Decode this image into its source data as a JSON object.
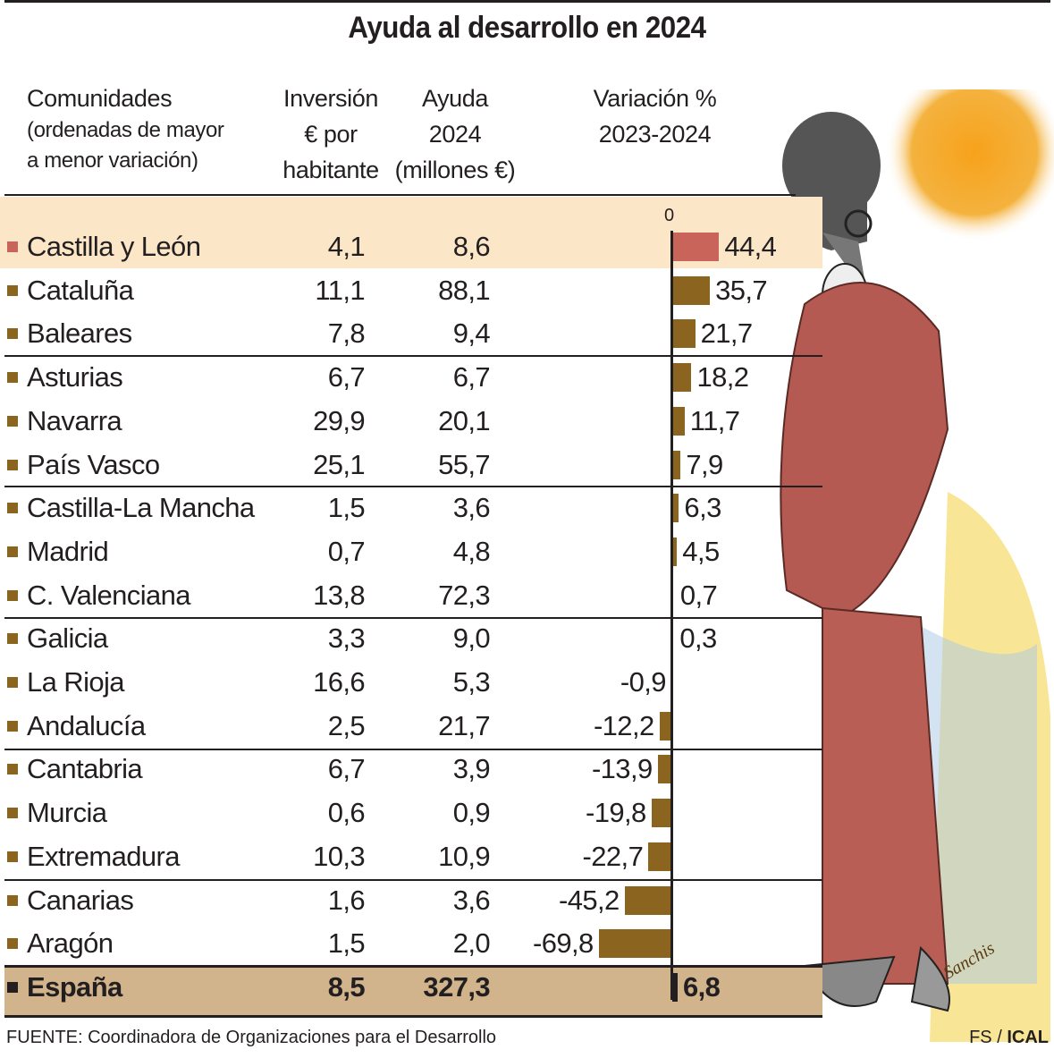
{
  "title": "Ayuda al desarrollo en 2024",
  "headers": {
    "comunidades": [
      "Comunidades",
      "(ordenadas de mayor",
      "a menor variación)"
    ],
    "inversion": [
      "Inversión",
      "€ por",
      "habitante"
    ],
    "ayuda": [
      "Ayuda",
      "2024",
      "(millones €)"
    ],
    "variacion": [
      "Variación %",
      "2023-2024"
    ]
  },
  "axis_zero_label": "0",
  "colors": {
    "highlight_bar": "#c8645a",
    "bar": "#8b6420",
    "highlight_row": "#fbe7c8",
    "total_row": "#d1b48b",
    "total_bar": "#231f20"
  },
  "chart_data": {
    "type": "bar",
    "orientation": "horizontal",
    "categories": [
      "Castilla y León",
      "Cataluña",
      "Baleares",
      "Asturias",
      "Navarra",
      "País Vasco",
      "Castilla-La Mancha",
      "Madrid",
      "C. Valenciana",
      "Galicia",
      "La Rioja",
      "Andalucía",
      "Cantabria",
      "Murcia",
      "Extremadura",
      "Canarias",
      "Aragón",
      "España"
    ],
    "inversion_labels": [
      "4,1",
      "11,1",
      "7,8",
      "6,7",
      "29,9",
      "25,1",
      "1,5",
      "0,7",
      "13,8",
      "3,3",
      "16,6",
      "2,5",
      "6,7",
      "0,6",
      "10,3",
      "1,6",
      "1,5",
      "8,5"
    ],
    "ayuda_labels": [
      "8,6",
      "88,1",
      "9,4",
      "6,7",
      "20,1",
      "55,7",
      "3,6",
      "4,8",
      "72,3",
      "9,0",
      "5,3",
      "21,7",
      "3,9",
      "0,9",
      "10,9",
      "3,6",
      "2,0",
      "327,3"
    ],
    "variacion_labels": [
      "44,4",
      "35,7",
      "21,7",
      "18,2",
      "11,7",
      "7,9",
      "6,3",
      "4,5",
      "0,7",
      "0,3",
      "-0,9",
      "-12,2",
      "-13,9",
      "-19,8",
      "-22,7",
      "-45,2",
      "-69,8",
      "6,8"
    ],
    "values": [
      44.4,
      35.7,
      21.7,
      18.2,
      11.7,
      7.9,
      6.3,
      4.5,
      0.7,
      0.3,
      -0.9,
      -12.2,
      -13.9,
      -19.8,
      -22.7,
      -45.2,
      -69.8,
      6.8
    ]
  },
  "source": "FUENTE: Coordinadora de Organizaciones para el Desarrollo",
  "credit": {
    "author": "FS",
    "agency": "ICAL"
  },
  "signature": "Sanchis"
}
